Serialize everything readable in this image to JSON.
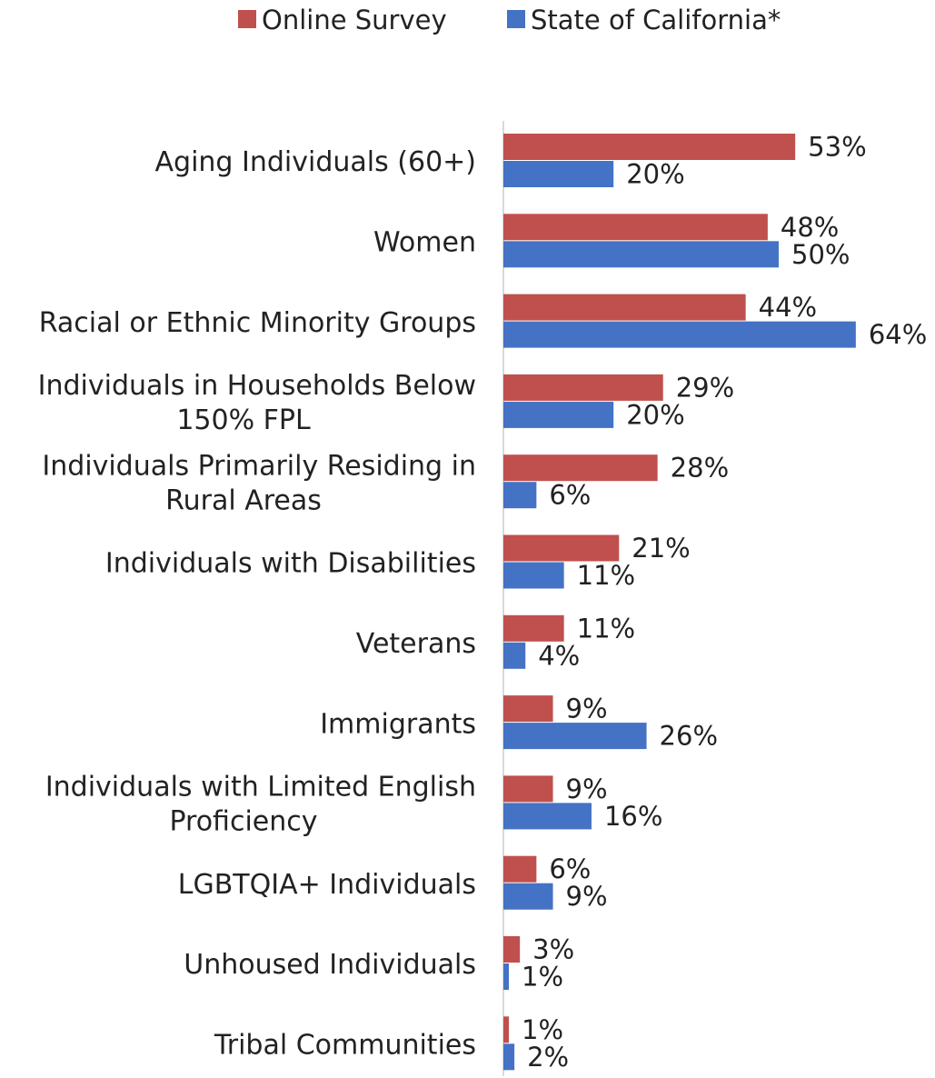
{
  "chart_data": {
    "type": "bar",
    "orientation": "horizontal",
    "categories": [
      [
        "Aging Individuals (60+)"
      ],
      [
        "Women"
      ],
      [
        "Racial or Ethnic Minority Groups"
      ],
      [
        "Individuals in Households Below",
        "150% FPL"
      ],
      [
        "Individuals Primarily Residing in",
        "Rural Areas"
      ],
      [
        "Individuals with Disabilities"
      ],
      [
        "Veterans"
      ],
      [
        "Immigrants"
      ],
      [
        "Individuals with Limited English",
        "Proficiency"
      ],
      [
        "LGBTQIA+ Individuals"
      ],
      [
        "Unhoused Individuals"
      ],
      [
        "Tribal Communities"
      ]
    ],
    "series": [
      {
        "name": "Online Survey",
        "color": "#C0504D",
        "values": [
          53,
          48,
          44,
          29,
          28,
          21,
          11,
          9,
          9,
          6,
          3,
          1
        ]
      },
      {
        "name": "State of California*",
        "color": "#4472C4",
        "values": [
          20,
          50,
          64,
          20,
          6,
          11,
          4,
          26,
          16,
          9,
          1,
          2
        ]
      }
    ],
    "value_suffix": "%",
    "xlim": [
      0,
      64
    ],
    "grid": false,
    "legend_position": "top-center"
  }
}
